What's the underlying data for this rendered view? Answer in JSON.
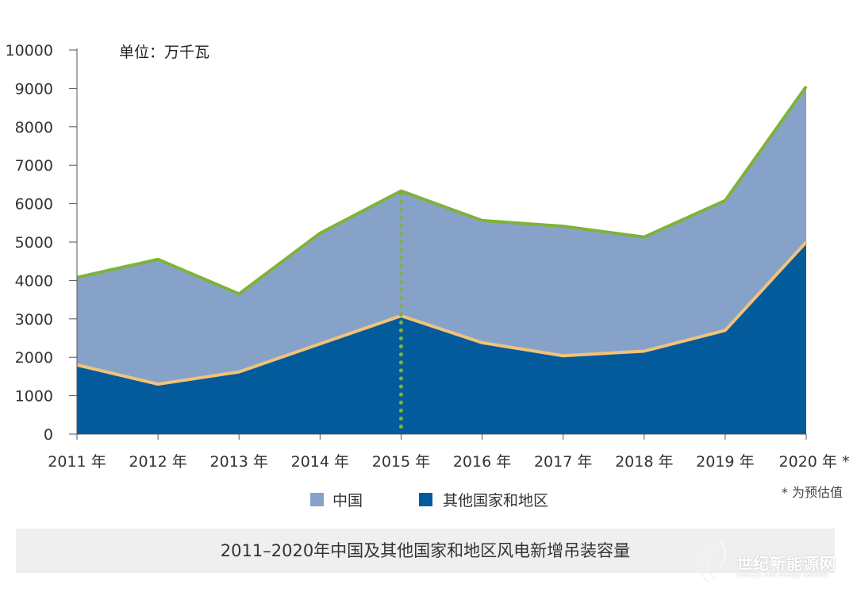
{
  "chart_data": {
    "type": "area",
    "stacked": true,
    "unit_label": "单位：万千瓦",
    "categories": [
      "2011 年",
      "2012 年",
      "2013 年",
      "2014 年",
      "2015 年",
      "2016 年",
      "2017 年",
      "2018 年",
      "2019 年",
      "2020 年 *"
    ],
    "series": [
      {
        "name": "其他国家和地区",
        "color": "#045b9b",
        "line_color": "#f2c37a",
        "values": [
          1800,
          1300,
          1620,
          2350,
          3080,
          2380,
          2040,
          2160,
          2700,
          5000
        ]
      },
      {
        "name": "中国",
        "color": "#87a2c9",
        "line_color": "#7eb23a",
        "values": [
          2280,
          3250,
          2030,
          2880,
          3250,
          3180,
          3370,
          2970,
          3380,
          4050
        ]
      }
    ],
    "yticks": [
      "0",
      "1000",
      "2000",
      "3000",
      "4000",
      "5000",
      "6000",
      "7000",
      "8000",
      "9000",
      "10000"
    ],
    "ylim": [
      0,
      10000
    ],
    "highlight_category": "2015 年",
    "highlight_color": "#7eb23a",
    "footnote": "* 为预估值",
    "legend_position": "bottom-center"
  },
  "caption": "2011–2020年中国及其他国家和地区风电新增吊装容量",
  "watermark": {
    "text": "世纪新能源网",
    "subtext": "Century new energy network"
  }
}
